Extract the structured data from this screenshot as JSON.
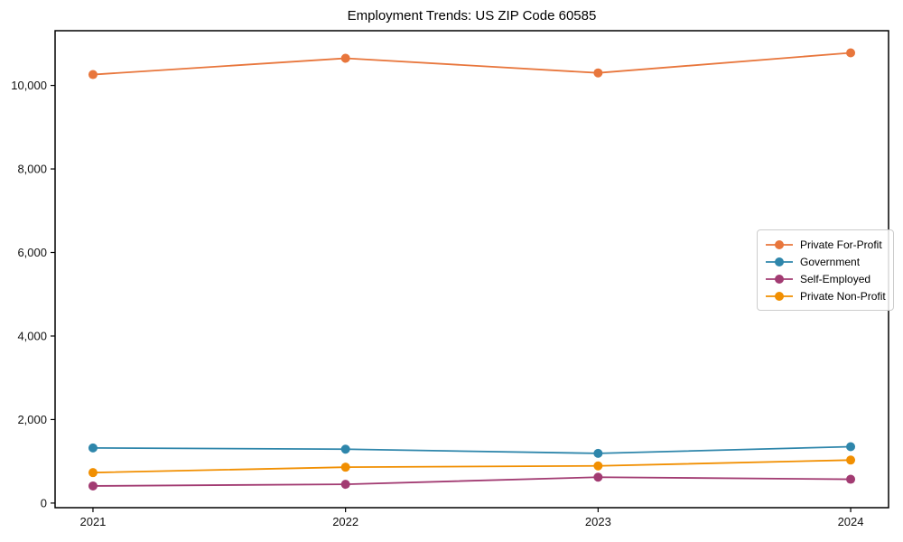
{
  "title": "Employment Trends: US ZIP Code 60585",
  "chart_data": {
    "type": "line",
    "title": "Employment Trends: US ZIP Code 60585",
    "xlabel": "",
    "ylabel": "",
    "x": [
      2021,
      2022,
      2023,
      2024
    ],
    "x_tick_labels": [
      "2021",
      "2022",
      "2023",
      "2024"
    ],
    "y_ticks": [
      0,
      2000,
      4000,
      6000,
      8000,
      10000
    ],
    "y_tick_labels": [
      "0",
      "2,000",
      "4,000",
      "6,000",
      "8,000",
      "10,000"
    ],
    "xlim": [
      2020.85,
      2024.15
    ],
    "ylim": [
      -110,
      11310
    ],
    "grid": false,
    "legend_position": "center-right",
    "series": [
      {
        "name": "Private For-Profit",
        "color": "#E8763C",
        "values": [
          10260,
          10650,
          10300,
          10780
        ]
      },
      {
        "name": "Government",
        "color": "#2E86AB",
        "values": [
          1320,
          1290,
          1190,
          1350
        ]
      },
      {
        "name": "Self-Employed",
        "color": "#A23B72",
        "values": [
          410,
          450,
          620,
          570
        ]
      },
      {
        "name": "Private Non-Profit",
        "color": "#F18F01",
        "values": [
          730,
          860,
          890,
          1030
        ]
      }
    ]
  }
}
